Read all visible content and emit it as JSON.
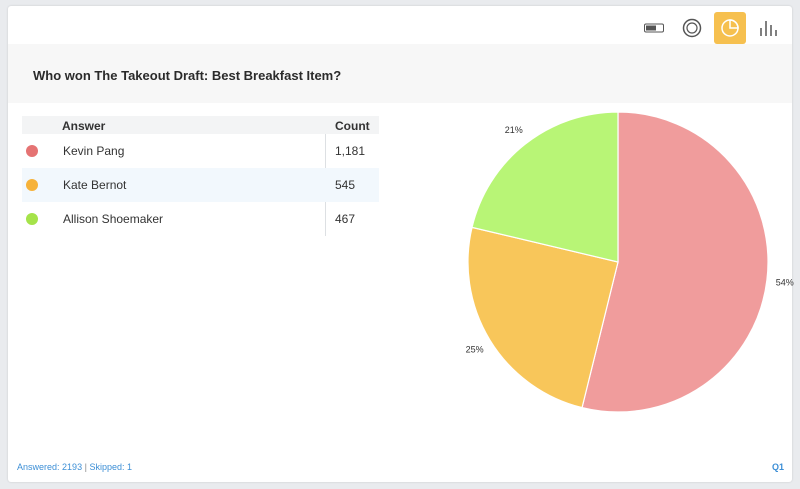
{
  "question": "Who won The Takeout Draft: Best Breakfast Item?",
  "toolbar": {
    "items": [
      {
        "icon": "toggle-icon",
        "active": false
      },
      {
        "icon": "donut-icon",
        "active": false
      },
      {
        "icon": "pie-icon",
        "active": true
      },
      {
        "icon": "bar-chart-icon",
        "active": false
      }
    ],
    "active_color": "#f6c04f"
  },
  "table": {
    "headers": {
      "answer": "Answer",
      "count": "Count"
    },
    "rows": [
      {
        "label": "Kevin Pang",
        "count": "1,181",
        "color": "#e57373"
      },
      {
        "label": "Kate Bernot",
        "count": "545",
        "color": "#f6b23a"
      },
      {
        "label": "Allison Shoemaker",
        "count": "467",
        "color": "#a5e34a"
      }
    ]
  },
  "chart_data": {
    "type": "pie",
    "slices": [
      {
        "label": "Kevin Pang",
        "value": 1181,
        "percent_label": "54%",
        "color": "#f09c9c"
      },
      {
        "label": "Kate Bernot",
        "value": 545,
        "percent_label": "25%",
        "color": "#f8c65a"
      },
      {
        "label": "Allison Shoemaker",
        "value": 467,
        "percent_label": "21%",
        "color": "#b8f576"
      }
    ]
  },
  "footer": {
    "answered_label": "Answered:",
    "answered_value": "2193",
    "separator": "|",
    "skipped_label": "Skipped:",
    "skipped_value": "1",
    "question_number": "Q1"
  }
}
